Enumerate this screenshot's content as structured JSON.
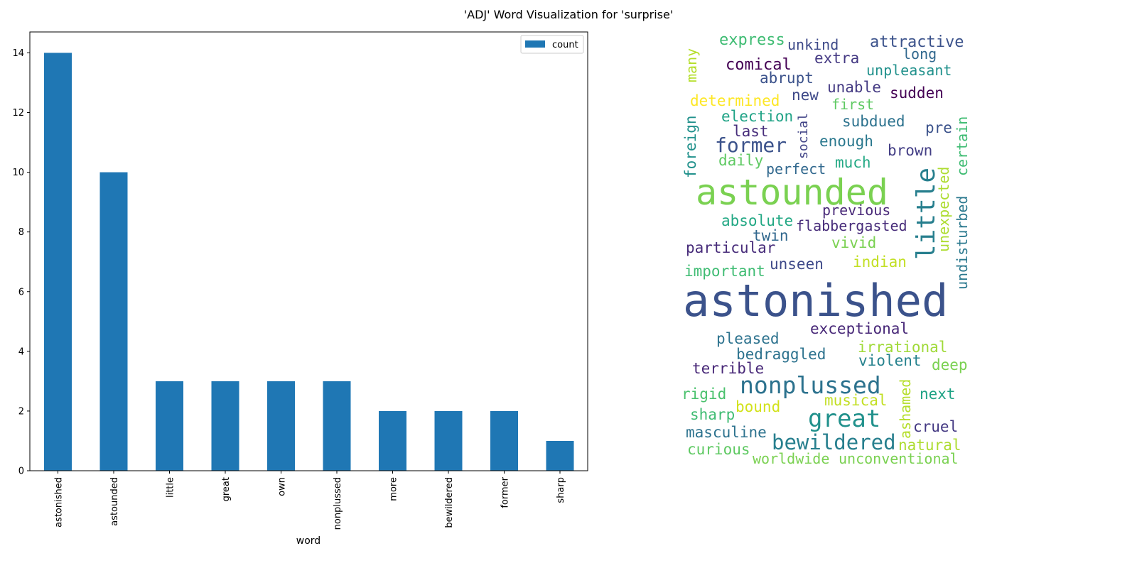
{
  "figure_title": "'ADJ' Word Visualization for 'surprise'",
  "chart_data": [
    {
      "type": "bar",
      "categories": [
        "astonished",
        "astounded",
        "little",
        "great",
        "own",
        "nonplussed",
        "more",
        "bewildered",
        "former",
        "sharp"
      ],
      "series": [
        {
          "name": "count",
          "values": [
            14,
            10,
            3,
            3,
            3,
            3,
            2,
            2,
            2,
            1
          ],
          "color": "#1f77b4"
        }
      ],
      "xlabel": "word",
      "ylabel": "",
      "ylim": [
        0,
        14.7
      ],
      "yticks": [
        0,
        2,
        4,
        6,
        8,
        10,
        12,
        14
      ],
      "legend": "top-right",
      "grid": false
    },
    {
      "type": "wordcloud",
      "palette": "viridis",
      "words": [
        {
          "text": "express",
          "color": "#3fbc73"
        },
        {
          "text": "unkind",
          "color": "#3e4a89"
        },
        {
          "text": "attractive",
          "color": "#3b528b"
        },
        {
          "text": "many",
          "color": "#b5de2b"
        },
        {
          "text": "long",
          "color": "#31688e"
        },
        {
          "text": "extra",
          "color": "#443983"
        },
        {
          "text": "comical",
          "color": "#440154"
        },
        {
          "text": "unpleasant",
          "color": "#21918c"
        },
        {
          "text": "abrupt",
          "color": "#3b528b"
        },
        {
          "text": "unable",
          "color": "#443a83"
        },
        {
          "text": "sudden",
          "color": "#440154"
        },
        {
          "text": "determined",
          "color": "#fde725"
        },
        {
          "text": "new",
          "color": "#3e4989"
        },
        {
          "text": "first",
          "color": "#5ec962"
        },
        {
          "text": "election",
          "color": "#20a386"
        },
        {
          "text": "subdued",
          "color": "#2c728e"
        },
        {
          "text": "social",
          "color": "#414487"
        },
        {
          "text": "foreign",
          "color": "#21918c"
        },
        {
          "text": "last",
          "color": "#472d7b"
        },
        {
          "text": "pre",
          "color": "#3b528b"
        },
        {
          "text": "certain",
          "color": "#3fbc73"
        },
        {
          "text": "former",
          "color": "#3b528b"
        },
        {
          "text": "enough",
          "color": "#2a788e"
        },
        {
          "text": "brown",
          "color": "#433e85"
        },
        {
          "text": "daily",
          "color": "#5ec962"
        },
        {
          "text": "much",
          "color": "#22a884"
        },
        {
          "text": "perfect",
          "color": "#31688e"
        },
        {
          "text": "unexpected",
          "color": "#addc30"
        },
        {
          "text": "little",
          "color": "#277f8e"
        },
        {
          "text": "undisturbed",
          "color": "#2a788e"
        },
        {
          "text": "astounded",
          "color": "#7ad151"
        },
        {
          "text": "previous",
          "color": "#482878"
        },
        {
          "text": "absolute",
          "color": "#22a884"
        },
        {
          "text": "flabbergasted",
          "color": "#472c7a"
        },
        {
          "text": "twin",
          "color": "#31688e"
        },
        {
          "text": "particular",
          "color": "#472c7a"
        },
        {
          "text": "vivid",
          "color": "#7ad151"
        },
        {
          "text": "indian",
          "color": "#c2df23"
        },
        {
          "text": "unseen",
          "color": "#3e4989"
        },
        {
          "text": "important",
          "color": "#3fbc73"
        },
        {
          "text": "astonished",
          "color": "#3b528b"
        },
        {
          "text": "exceptional",
          "color": "#482878"
        },
        {
          "text": "pleased",
          "color": "#2c728e"
        },
        {
          "text": "irrational",
          "color": "#a0da39"
        },
        {
          "text": "bedraggled",
          "color": "#2c728e"
        },
        {
          "text": "violent",
          "color": "#26828e"
        },
        {
          "text": "deep",
          "color": "#7ad151"
        },
        {
          "text": "terrible",
          "color": "#482878"
        },
        {
          "text": "ashamed",
          "color": "#b5de2b"
        },
        {
          "text": "rigid",
          "color": "#4ac16d"
        },
        {
          "text": "nonplussed",
          "color": "#2c728e"
        },
        {
          "text": "next",
          "color": "#20a386"
        },
        {
          "text": "musical",
          "color": "#c2df23"
        },
        {
          "text": "sharp",
          "color": "#3fbc73"
        },
        {
          "text": "bound",
          "color": "#d2e21b"
        },
        {
          "text": "great",
          "color": "#21918c"
        },
        {
          "text": "cruel",
          "color": "#443983"
        },
        {
          "text": "masculine",
          "color": "#2c728e"
        },
        {
          "text": "bewildered",
          "color": "#277f8e"
        },
        {
          "text": "natural",
          "color": "#addc30"
        },
        {
          "text": "curious",
          "color": "#5ec962"
        },
        {
          "text": "worldwide",
          "color": "#7ad151"
        },
        {
          "text": "unconventional",
          "color": "#7ad151"
        }
      ]
    }
  ]
}
